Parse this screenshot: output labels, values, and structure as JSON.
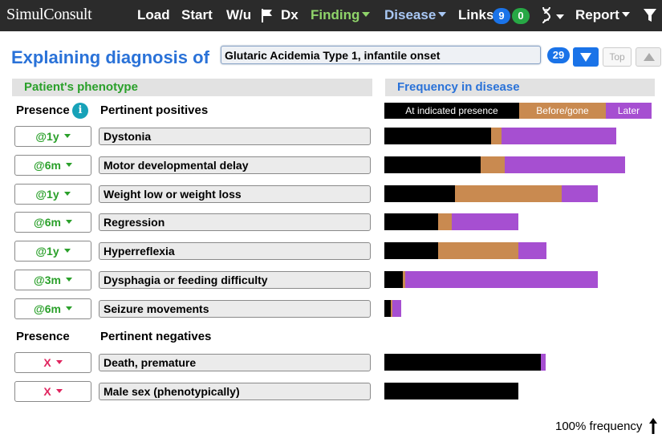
{
  "nav": {
    "logo": "SimulConsult",
    "items": {
      "load": "Load",
      "start": "Start",
      "wu": "W/u",
      "dx": "Dx",
      "finding": "Finding",
      "disease": "Disease",
      "links": "Links",
      "report": "Report"
    },
    "links_badge_blue": "9",
    "links_badge_green": "0",
    "icons": [
      "flag-icon",
      "dna-icon",
      "filter-icon"
    ]
  },
  "header": {
    "title": "Explaining diagnosis of",
    "diagnosis_value": "Glutaric Acidemia Type 1, infantile onset",
    "count": "29",
    "top_label": "Top"
  },
  "sections": {
    "left_title": "Patient's phenotype",
    "right_title": "Frequency in disease",
    "presence_label": "Presence",
    "positives_label": "Pertinent positives",
    "presence_label2": "Presence",
    "negatives_label": "Pertinent negatives"
  },
  "legend": {
    "at_presence": "At indicated presence",
    "before_gone": "Before/gone",
    "later": "Later"
  },
  "colors": {
    "at_presence": "#000000",
    "before_gone": "#c98a50",
    "later": "#a64fd1",
    "positive": "#2aa02a",
    "negative": "#e0245e",
    "accent": "#2a72d8"
  },
  "positives": [
    {
      "presence": "@1y",
      "finding": "Dystonia",
      "at": 0.4,
      "before": 0.04,
      "later": 0.43
    },
    {
      "presence": "@6m",
      "finding": "Motor developmental delay",
      "at": 0.36,
      "before": 0.09,
      "later": 0.45
    },
    {
      "presence": "@1y",
      "finding": "Weight low or weight loss",
      "at": 0.265,
      "before": 0.4,
      "later": 0.135
    },
    {
      "presence": "@6m",
      "finding": "Regression",
      "at": 0.2,
      "before": 0.05,
      "later": 0.25
    },
    {
      "presence": "@1y",
      "finding": "Hyperreflexia",
      "at": 0.2,
      "before": 0.3,
      "later": 0.105
    },
    {
      "presence": "@3m",
      "finding": "Dysphagia or feeding difficulty",
      "at": 0.07,
      "before": 0.008,
      "later": 0.72
    },
    {
      "presence": "@6m",
      "finding": "Seizure movements",
      "at": 0.025,
      "before": 0.006,
      "later": 0.032
    }
  ],
  "negatives": [
    {
      "presence": "X",
      "finding": "Death, premature",
      "at": 0.585,
      "before": 0.0,
      "later": 0.018
    },
    {
      "presence": "X",
      "finding": "Male sex (phenotypically)",
      "at": 0.5,
      "before": 0.0,
      "later": 0.0
    }
  ],
  "footer": {
    "scale_label": "100% frequency"
  }
}
